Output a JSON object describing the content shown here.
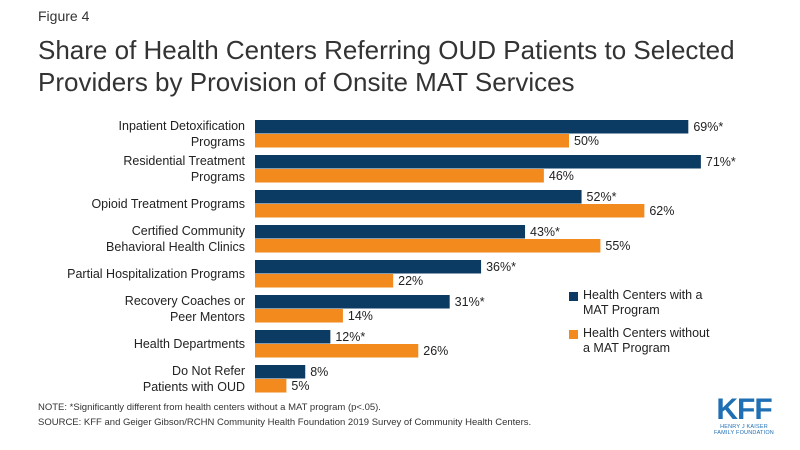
{
  "figure_label": "Figure 4",
  "chart_data": {
    "type": "bar",
    "orientation": "horizontal",
    "title": "Share of Health Centers Referring OUD Patients to Selected Providers by Provision of Onsite MAT Services",
    "categories": [
      "Inpatient Detoxification\nPrograms",
      "Residential Treatment\nPrograms",
      "Opioid Treatment Programs",
      "Certified Community\nBehavioral Health Clinics",
      "Partial Hospitalization Programs",
      "Recovery Coaches or\nPeer Mentors",
      "Health Departments",
      "Do Not Refer\nPatients with OUD"
    ],
    "series": [
      {
        "name": "Health Centers with a\nMAT Program",
        "color": "#0b3a63",
        "values": [
          69,
          71,
          52,
          43,
          36,
          31,
          12,
          8
        ],
        "labels": [
          "69%*",
          "71%*",
          "52%*",
          "43%*",
          "36%*",
          "31%*",
          "12%*",
          "8%"
        ]
      },
      {
        "name": "Health Centers without\na MAT Program",
        "color": "#f28a1e",
        "values": [
          50,
          46,
          62,
          55,
          22,
          14,
          26,
          5
        ],
        "labels": [
          "50%",
          "46%",
          "62%",
          "55%",
          "22%",
          "14%",
          "26%",
          "5%"
        ]
      }
    ],
    "xlim": [
      0,
      100
    ],
    "grid": false,
    "legend_position": "right"
  },
  "note": "NOTE: *Significantly different from health centers without a MAT program (p<.05).",
  "source": "SOURCE: KFF and Geiger Gibson/RCHN Community Health Foundation 2019 Survey of Community Health Centers.",
  "logo": {
    "mark": "KFF",
    "subtitle": "HENRY J KAISER FAMILY FOUNDATION",
    "color": "#1f6fb5"
  }
}
